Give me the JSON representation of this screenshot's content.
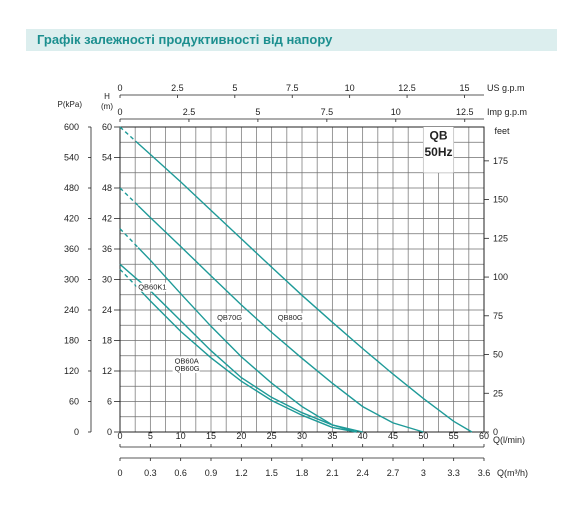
{
  "header": {
    "title": "Графік залежності продуктивності від напору"
  },
  "chart_data": {
    "type": "line",
    "title": "QB",
    "subtitle": "50Hz",
    "grid": true,
    "legend": "inline-labels",
    "xlim": [
      0,
      60
    ],
    "ylim": [
      0,
      60
    ],
    "axes": {
      "x_bottom": {
        "label": "Q(l/min)",
        "ticks": [
          0,
          5,
          10,
          15,
          20,
          25,
          30,
          35,
          40,
          45,
          50,
          55,
          60
        ]
      },
      "x_bottom2": {
        "label": "Q(m³/h)",
        "ticks": [
          "0",
          "0.3",
          "0.6",
          "0.9",
          "1.2",
          "1.5",
          "1.8",
          "2.1",
          "2.4",
          "2.7",
          "3",
          "3.3",
          "3.6"
        ]
      },
      "x_top_us": {
        "label": "US  g.p.m",
        "ticks": [
          {
            "v": 0,
            "label": "0"
          },
          {
            "v": 2.5,
            "label": "2.5"
          },
          {
            "v": 5,
            "label": "5"
          },
          {
            "v": 7.5,
            "label": "7.5"
          },
          {
            "v": 10,
            "label": "10"
          },
          {
            "v": 12.5,
            "label": "12.5"
          },
          {
            "v": 15,
            "label": "15"
          }
        ]
      },
      "x_top_imp": {
        "label": "Imp  g.p.m",
        "ticks": [
          {
            "v": 0,
            "label": "0"
          },
          {
            "v": 2.5,
            "label": "2.5"
          },
          {
            "v": 5,
            "label": "5"
          },
          {
            "v": 7.5,
            "label": "7.5"
          },
          {
            "v": 10,
            "label": "10"
          },
          {
            "v": 12.5,
            "label": "12.5"
          }
        ]
      },
      "y_left_kpa": {
        "label": "P(kPa)",
        "ticks": [
          0,
          60,
          120,
          180,
          240,
          300,
          360,
          420,
          480,
          540,
          600
        ]
      },
      "y_left_m": {
        "label_lines": [
          "H",
          "(m)"
        ],
        "ticks": [
          0,
          6,
          12,
          18,
          24,
          30,
          36,
          42,
          48,
          54,
          60
        ]
      },
      "y_right_feet": {
        "label": "feet",
        "ticks": [
          0,
          25,
          50,
          75,
          100,
          125,
          150,
          175
        ]
      }
    },
    "series": [
      {
        "name": "QB80G",
        "dashed_until": 3,
        "x": [
          0,
          5,
          10,
          15,
          20,
          25,
          30,
          35,
          40,
          45,
          50,
          55,
          58
        ],
        "y": [
          60,
          54.6,
          49.2,
          43.6,
          38,
          32.4,
          26.9,
          21.6,
          16.4,
          11.4,
          6.6,
          2.1,
          0
        ]
      },
      {
        "name": "QB70G",
        "dashed_until": 3,
        "x": [
          0,
          5,
          10,
          15,
          20,
          25,
          30,
          35,
          40,
          45,
          50
        ],
        "y": [
          48,
          42.2,
          36.5,
          30.7,
          25,
          19.6,
          14.5,
          9.6,
          5,
          1.8,
          0
        ]
      },
      {
        "name": "QB60K1",
        "dashed_until": 3,
        "x": [
          0,
          5,
          10,
          15,
          20,
          25,
          30,
          35,
          39
        ],
        "y": [
          40,
          33.8,
          27.2,
          20.8,
          14.8,
          9.6,
          5,
          1.4,
          0
        ]
      },
      {
        "name": "QB60A",
        "x": [
          0,
          5,
          10,
          15,
          20,
          25,
          30,
          35,
          40
        ],
        "y": [
          33,
          27.8,
          21.9,
          16,
          10.7,
          6.8,
          3.8,
          1.4,
          0
        ]
      },
      {
        "name": "QB60G",
        "dashed_until": 3,
        "x": [
          0,
          5,
          10,
          15,
          20,
          25,
          30,
          35,
          39
        ],
        "y": [
          32,
          25.8,
          19.8,
          14.6,
          10,
          6.2,
          3.3,
          0.9,
          0
        ]
      }
    ],
    "annotations": [
      {
        "text": "QB60K1",
        "x": 3,
        "y": 28
      },
      {
        "text": "QB70G",
        "x": 16,
        "y": 22
      },
      {
        "text": "QB80G",
        "x": 26,
        "y": 22
      },
      {
        "text": "QB60A",
        "x": 9,
        "y": 13.5
      },
      {
        "text": "QB60G",
        "x": 9,
        "y": 12
      }
    ],
    "colors": {
      "curve": "#1e9a98",
      "grid": "#6f6f6f",
      "header": "#1c8f8f",
      "header_bg": "#dceeee"
    }
  }
}
